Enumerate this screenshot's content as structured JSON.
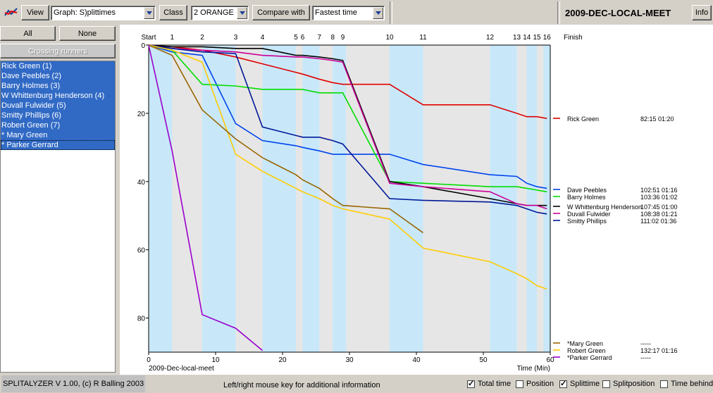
{
  "toolbar": {
    "view_label": "View",
    "graph_value": "Graph: S)plittimes",
    "class_label": "Class",
    "class_value": "2 ORANGE",
    "compare_label": "Compare with",
    "compare_value": "Fastest time",
    "event_title": "2009-DEC-LOCAL-MEET",
    "info_label": "Info"
  },
  "sidebar": {
    "all_label": "All",
    "none_label": "None",
    "crossing_label": "Crossing runners",
    "runners": [
      {
        "label": "Rick Green  (1)",
        "selected": true
      },
      {
        "label": "Dave Peebles  (2)",
        "selected": true
      },
      {
        "label": "Barry Holmes  (3)",
        "selected": true
      },
      {
        "label": "W Whittenburg Henderson  (4)",
        "selected": true
      },
      {
        "label": "Duvall Fulwider  (5)",
        "selected": true
      },
      {
        "label": "Smitty Phillips  (6)",
        "selected": true
      },
      {
        "label": "Robert Green  (7)",
        "selected": true
      },
      {
        "label": "* Mary Green",
        "selected": true
      },
      {
        "label": "* Parker Gerrard",
        "selected": true,
        "focus": true
      }
    ]
  },
  "status": {
    "version": "SPLITALYZER V 1.00, (c) R Balling 2003",
    "hint": "Left/right mouse key for additional information",
    "options": [
      {
        "label": "Total time",
        "checked": true
      },
      {
        "label": "Position",
        "checked": false
      },
      {
        "label": "Splittime",
        "checked": true
      },
      {
        "label": "Splitposition",
        "checked": false
      },
      {
        "label": "Time behind",
        "checked": false
      }
    ]
  },
  "chart_data": {
    "type": "line",
    "xlabel": "Time (Min)",
    "xlabel_left": "2009-Dec-local-meet",
    "xlim": [
      0,
      60
    ],
    "ylim": [
      0,
      90
    ],
    "x_ticks": [
      0,
      10,
      20,
      30,
      40,
      50,
      60
    ],
    "y_ticks": [
      0,
      20,
      40,
      60,
      80
    ],
    "grid": false,
    "controls": [
      {
        "label": "Start",
        "t": 0
      },
      {
        "label": "1",
        "t": 3.5
      },
      {
        "label": "2",
        "t": 8
      },
      {
        "label": "3",
        "t": 13
      },
      {
        "label": "4",
        "t": 17
      },
      {
        "label": "5",
        "t": 22
      },
      {
        "label": "6",
        "t": 23
      },
      {
        "label": "7",
        "t": 25.5
      },
      {
        "label": "8",
        "t": 27.5
      },
      {
        "label": "9",
        "t": 29
      },
      {
        "label": "10",
        "t": 36
      },
      {
        "label": "11",
        "t": 41
      },
      {
        "label": "12",
        "t": 51
      },
      {
        "label": "13",
        "t": 55
      },
      {
        "label": "14",
        "t": 56.5
      },
      {
        "label": "15",
        "t": 58
      },
      {
        "label": "16",
        "t": 59.5
      },
      {
        "label": "Finish",
        "t": 62
      }
    ],
    "bands": [
      [
        0,
        3.5
      ],
      [
        8,
        13
      ],
      [
        17,
        22
      ],
      [
        23,
        25.5
      ],
      [
        27.5,
        29.5
      ],
      [
        36,
        41
      ],
      [
        51,
        55
      ],
      [
        56.5,
        58
      ],
      [
        59,
        60
      ]
    ],
    "series": [
      {
        "name": "Rick Green",
        "total": "82:15",
        "behind": "01:20",
        "color": "#e00000",
        "x": [
          0,
          3.5,
          8,
          13,
          17,
          22,
          23,
          25.5,
          27.5,
          29,
          36,
          41,
          51,
          55,
          56.5,
          58,
          59.5
        ],
        "y": [
          0,
          0.5,
          1.5,
          3.5,
          5.5,
          8,
          8.5,
          10,
          11,
          11.5,
          11.5,
          17.5,
          17.5,
          20,
          21,
          21,
          21.5
        ]
      },
      {
        "name": "Dave Peebles",
        "total": "102:51",
        "behind": "01:16",
        "color": "#0044ee",
        "x": [
          0,
          3.5,
          8,
          13,
          17,
          22,
          23,
          25.5,
          27.5,
          29,
          36,
          41,
          51,
          55,
          56.5,
          58,
          59.5
        ],
        "y": [
          0,
          2,
          3,
          23,
          28,
          29.5,
          30,
          31,
          32,
          32,
          32,
          35,
          38,
          38.5,
          40.5,
          41.5,
          42
        ]
      },
      {
        "name": "Barry Holmes",
        "total": "103:36",
        "behind": "01:02",
        "color": "#00dd00",
        "x": [
          0,
          3.5,
          8,
          13,
          17,
          22,
          23,
          25.5,
          27.5,
          29,
          36,
          41,
          51,
          55,
          56.5,
          58,
          59.5
        ],
        "y": [
          0,
          1.5,
          11.5,
          12,
          13,
          13,
          13,
          14,
          14,
          14,
          40,
          40.5,
          41.5,
          41.5,
          42,
          42.5,
          43
        ]
      },
      {
        "name": "W Whittenburg Henderson",
        "total": "107:45",
        "behind": "01:00",
        "color": "#000000",
        "x": [
          0,
          3.5,
          8,
          13,
          17,
          22,
          23,
          25.5,
          27.5,
          29,
          36,
          41,
          51,
          55,
          56.5,
          58,
          59.5
        ],
        "y": [
          0,
          0.5,
          0.5,
          1,
          1,
          3,
          3,
          3.5,
          4,
          4.5,
          40,
          41.5,
          45,
          46.5,
          47,
          47,
          47
        ]
      },
      {
        "name": "Duvall Fulwider",
        "total": "108:38",
        "behind": "01:21",
        "color": "#cc0099",
        "x": [
          0,
          3.5,
          8,
          13,
          17,
          22,
          23,
          25.5,
          27.5,
          29,
          36,
          41,
          51,
          55,
          56.5,
          58,
          59.5
        ],
        "y": [
          0,
          1,
          1.5,
          2,
          3,
          3.5,
          3.5,
          4,
          4.5,
          5,
          40.5,
          41.5,
          43,
          46.5,
          47,
          47,
          48
        ]
      },
      {
        "name": "Smitty Phillips",
        "total": "111:02",
        "behind": "01:36",
        "color": "#001899",
        "x": [
          0,
          3.5,
          8,
          13,
          17,
          22,
          23,
          25.5,
          27.5,
          29,
          36,
          41,
          51,
          55,
          56.5,
          58,
          59.5
        ],
        "y": [
          0,
          1,
          2,
          2.5,
          24,
          26.5,
          27,
          27,
          28,
          29,
          45,
          45.5,
          46,
          47,
          48,
          49,
          49.5
        ]
      },
      {
        "name": "Robert Green",
        "total": "132:17",
        "behind": "01:16",
        "color": "#ffcc00",
        "x": [
          0,
          3.5,
          8,
          13,
          17,
          22,
          23,
          25.5,
          27.5,
          29,
          36,
          41,
          51,
          55,
          56.5,
          58,
          59.5
        ],
        "y": [
          0,
          1.5,
          5,
          32,
          37,
          42,
          43,
          45,
          47,
          48,
          51,
          59.5,
          63.5,
          67,
          68.5,
          70.5,
          71.5
        ]
      },
      {
        "name": "*Mary Green",
        "total": "-----",
        "behind": "",
        "color": "#996600",
        "x": [
          0,
          3.5,
          8,
          13,
          17,
          22,
          23,
          25.5,
          27.5,
          29,
          36,
          41
        ],
        "y": [
          0,
          3,
          19,
          27.5,
          33,
          38,
          39.5,
          42,
          45,
          47,
          48,
          55
        ]
      },
      {
        "name": "*Parker Gerrard",
        "total": "-----",
        "behind": "",
        "color": "#9900cc",
        "x": [
          0,
          3.5,
          8,
          13,
          17
        ],
        "y": [
          0,
          31,
          79,
          83,
          89.5
        ]
      }
    ]
  }
}
